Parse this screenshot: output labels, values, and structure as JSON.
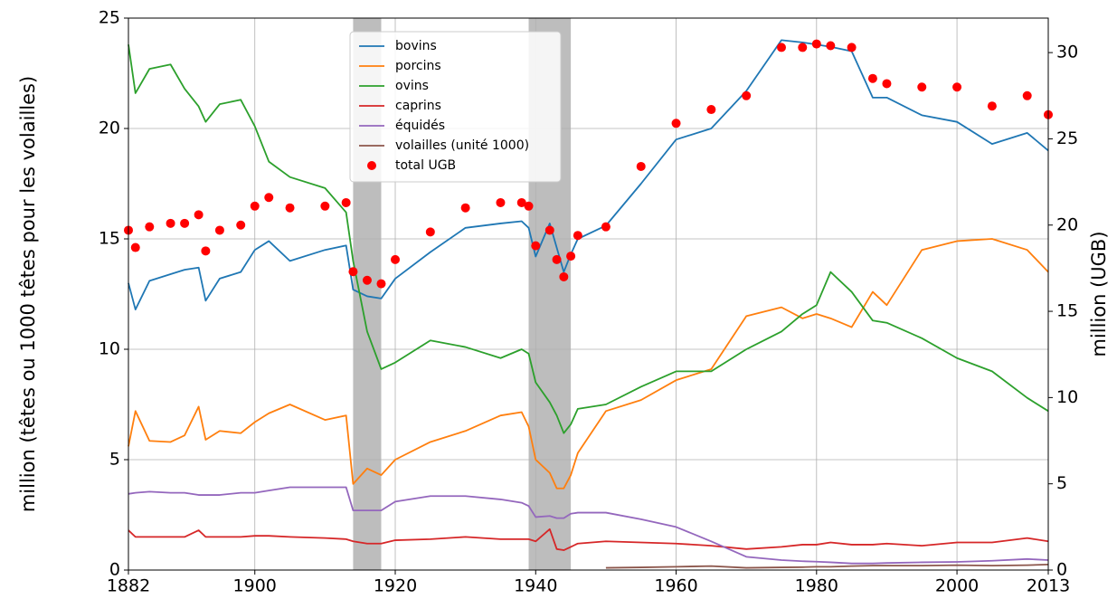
{
  "chart_data": {
    "type": "line",
    "y_label": "million (têtes ou 1000 têtes pour les volailles)",
    "y2_label": "million (UGB)",
    "x": [
      1882,
      1883,
      1885,
      1888,
      1890,
      1892,
      1893,
      1895,
      1898,
      1900,
      1902,
      1905,
      1910,
      1913,
      1914,
      1916,
      1918,
      1920,
      1925,
      1930,
      1935,
      1938,
      1939,
      1940,
      1942,
      1943,
      1944,
      1945,
      1946,
      1950,
      1955,
      1960,
      1965,
      1970,
      1975,
      1978,
      1980,
      1982,
      1985,
      1988,
      1990,
      1995,
      2000,
      2005,
      2010,
      2013
    ],
    "series": [
      {
        "name": "bovins",
        "color": "#1f77b4",
        "values": [
          13.0,
          11.8,
          13.1,
          13.4,
          13.6,
          13.7,
          12.2,
          13.2,
          13.5,
          14.5,
          14.9,
          14.0,
          14.5,
          14.7,
          12.7,
          12.4,
          12.3,
          13.2,
          14.4,
          15.5,
          15.7,
          15.8,
          15.5,
          14.2,
          15.7,
          14.6,
          13.5,
          14.3,
          15.0,
          15.6,
          17.5,
          19.5,
          20.0,
          21.7,
          24.0,
          23.9,
          23.8,
          23.7,
          23.5,
          21.4,
          21.4,
          20.6,
          20.3,
          19.3,
          19.8,
          19.0
        ]
      },
      {
        "name": "porcins",
        "color": "#ff7f0e",
        "values": [
          5.6,
          7.2,
          5.85,
          5.8,
          6.1,
          7.4,
          5.9,
          6.3,
          6.2,
          6.7,
          7.1,
          7.5,
          6.8,
          7.0,
          3.9,
          4.6,
          4.3,
          5.0,
          5.8,
          6.3,
          7.0,
          7.15,
          6.5,
          5.0,
          4.4,
          3.7,
          3.7,
          4.3,
          5.3,
          7.2,
          7.7,
          8.6,
          9.1,
          11.5,
          11.9,
          11.4,
          11.6,
          11.4,
          11.0,
          12.6,
          12.0,
          14.5,
          14.9,
          15.0,
          14.5,
          13.5
        ]
      },
      {
        "name": "ovins",
        "color": "#2ca02c",
        "values": [
          23.8,
          21.6,
          22.7,
          22.9,
          21.8,
          21.0,
          20.3,
          21.1,
          21.3,
          20.1,
          18.5,
          17.8,
          17.3,
          16.2,
          14.0,
          10.8,
          9.1,
          9.4,
          10.4,
          10.1,
          9.6,
          10.0,
          9.8,
          8.5,
          7.6,
          7.0,
          6.2,
          6.6,
          7.3,
          7.5,
          8.3,
          9.0,
          9.0,
          10.0,
          10.8,
          11.6,
          12.0,
          13.5,
          12.6,
          11.3,
          11.2,
          10.5,
          9.6,
          9.0,
          7.8,
          7.2
        ]
      },
      {
        "name": "caprins",
        "color": "#d62728",
        "values": [
          1.8,
          1.5,
          1.5,
          1.5,
          1.5,
          1.8,
          1.5,
          1.5,
          1.5,
          1.55,
          1.55,
          1.5,
          1.45,
          1.4,
          1.3,
          1.2,
          1.2,
          1.35,
          1.4,
          1.5,
          1.4,
          1.4,
          1.4,
          1.3,
          1.85,
          0.95,
          0.9,
          1.05,
          1.2,
          1.3,
          1.25,
          1.2,
          1.1,
          0.95,
          1.05,
          1.15,
          1.15,
          1.25,
          1.15,
          1.15,
          1.2,
          1.1,
          1.25,
          1.25,
          1.45,
          1.3
        ]
      },
      {
        "name": "équidés",
        "color": "#9467bd",
        "values": [
          3.45,
          3.5,
          3.55,
          3.5,
          3.5,
          3.4,
          3.4,
          3.4,
          3.5,
          3.5,
          3.6,
          3.75,
          3.75,
          3.75,
          2.7,
          2.7,
          2.7,
          3.1,
          3.35,
          3.35,
          3.2,
          3.05,
          2.9,
          2.4,
          2.45,
          2.35,
          2.35,
          2.55,
          2.6,
          2.6,
          2.3,
          1.95,
          1.3,
          0.6,
          0.45,
          0.4,
          0.38,
          0.35,
          0.3,
          0.3,
          0.32,
          0.35,
          0.37,
          0.42,
          0.5,
          0.45
        ]
      },
      {
        "name": "volailles (unité 1000)",
        "color": "#8c564b",
        "values": [
          null,
          null,
          null,
          null,
          null,
          null,
          null,
          null,
          null,
          null,
          null,
          null,
          null,
          null,
          null,
          null,
          null,
          null,
          null,
          null,
          null,
          null,
          null,
          null,
          null,
          null,
          null,
          null,
          null,
          0.1,
          0.12,
          0.15,
          0.18,
          0.1,
          0.12,
          0.13,
          0.15,
          0.15,
          0.18,
          0.2,
          0.2,
          0.2,
          0.22,
          0.2,
          0.22,
          0.25
        ]
      },
      {
        "name": "total UGB",
        "color": "#ff0000",
        "axis": "y2",
        "style": "dots",
        "values": [
          19.7,
          18.7,
          19.9,
          20.1,
          20.1,
          20.6,
          18.5,
          19.7,
          20.0,
          21.1,
          21.6,
          21.0,
          21.1,
          21.3,
          17.3,
          16.8,
          16.6,
          18.0,
          19.6,
          21.0,
          21.3,
          21.3,
          21.1,
          18.8,
          19.7,
          18.0,
          17.0,
          18.2,
          19.4,
          19.9,
          23.4,
          25.9,
          26.7,
          27.5,
          30.3,
          30.3,
          30.5,
          30.4,
          30.3,
          28.5,
          28.2,
          28.0,
          28.0,
          26.9,
          27.5,
          26.4
        ]
      }
    ],
    "shaded_spans": [
      [
        1914,
        1918
      ],
      [
        1939,
        1945
      ]
    ],
    "xlim": [
      1882,
      2013
    ],
    "xticks": [
      1882,
      1900,
      1920,
      1940,
      1960,
      1980,
      2000,
      2013
    ],
    "ylim": [
      0,
      25
    ],
    "yticks": [
      0,
      5,
      10,
      15,
      20,
      25
    ],
    "y2lim": [
      0,
      32
    ],
    "y2ticks": [
      0,
      5,
      10,
      15,
      20,
      25,
      30
    ],
    "grid": true,
    "legend": "upper center"
  }
}
